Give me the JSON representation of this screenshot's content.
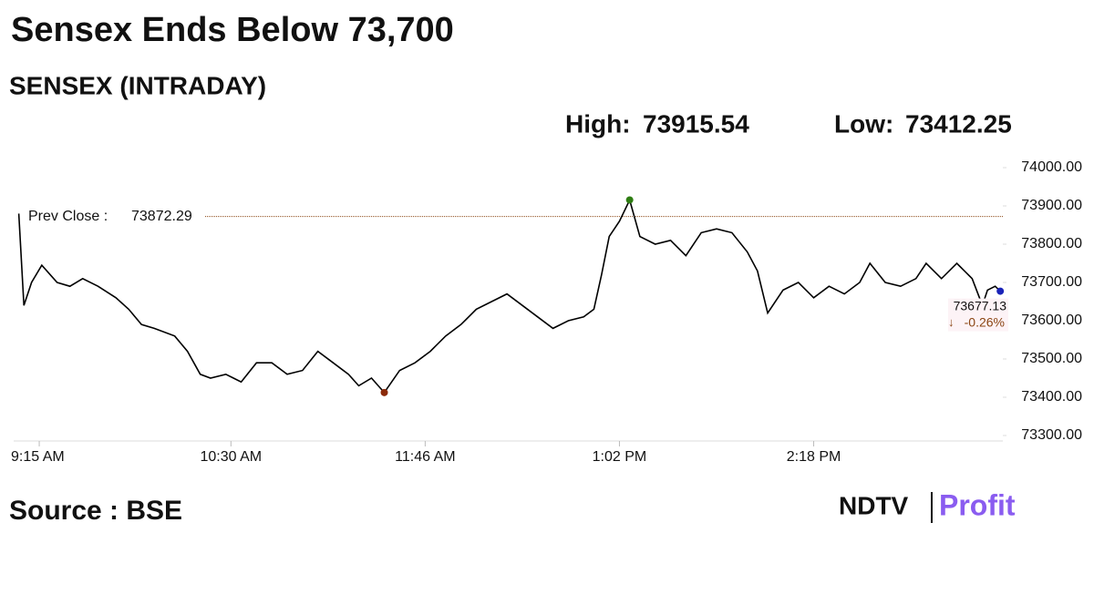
{
  "title": "Sensex Ends Below 73,700",
  "subtitle": "SENSEX (INTRADAY)",
  "high": {
    "label": "High:",
    "value": 73915.54
  },
  "low": {
    "label": "Low:",
    "value": 73412.25
  },
  "source": "Source : BSE",
  "logo": {
    "left": "NDTV",
    "right": "Profit"
  },
  "chart_data": {
    "type": "line",
    "x": [
      547,
      549,
      552,
      556,
      562,
      567,
      572,
      578,
      585,
      590,
      595,
      600,
      608,
      613,
      618,
      622,
      628,
      634,
      640,
      646,
      652,
      658,
      664,
      670,
      676,
      680,
      685,
      690,
      696,
      702,
      708,
      714,
      720,
      726,
      732,
      738,
      744,
      750,
      756,
      762,
      768,
      772,
      775,
      778,
      782,
      786,
      790,
      796,
      802,
      808,
      814,
      820,
      826,
      832,
      836,
      840,
      846,
      852,
      858,
      864,
      870,
      876,
      880,
      886,
      892,
      898,
      902,
      908,
      914,
      920,
      924,
      926,
      929,
      931
    ],
    "series": [
      {
        "name": "SENSEX",
        "color": "#000000",
        "values": [
          73880,
          73640,
          73700,
          73745,
          73700,
          73690,
          73710,
          73690,
          73660,
          73630,
          73590,
          73580,
          73560,
          73520,
          73460,
          73450,
          73460,
          73440,
          73490,
          73490,
          73460,
          73470,
          73520,
          73490,
          73460,
          73430,
          73450,
          73412.25,
          73470,
          73490,
          73520,
          73560,
          73590,
          73630,
          73650,
          73670,
          73640,
          73610,
          73580,
          73600,
          73610,
          73630,
          73720,
          73820,
          73860,
          73915.54,
          73820,
          73800,
          73810,
          73770,
          73830,
          73840,
          73830,
          73780,
          73730,
          73620,
          73680,
          73700,
          73660,
          73690,
          73670,
          73700,
          73750,
          73700,
          73690,
          73710,
          73750,
          73710,
          73750,
          73710,
          73640,
          73680,
          73690,
          73677.13
        ]
      }
    ],
    "prev_close": {
      "label": "Prev Close :",
      "value": 73872.29
    },
    "last": {
      "value": 73677.13,
      "change": "-0.26%"
    },
    "xlim": [
      545,
      932
    ],
    "xticks": [
      {
        "value": 555,
        "label": "9:15 AM"
      },
      {
        "value": 630,
        "label": "10:30 AM"
      },
      {
        "value": 706,
        "label": "11:46 AM"
      },
      {
        "value": 782,
        "label": "1:02 PM"
      },
      {
        "value": 858,
        "label": "2:18 PM"
      }
    ],
    "ylim": [
      73300,
      74000
    ],
    "yticks": [
      {
        "value": 73300,
        "label": "73300.00"
      },
      {
        "value": 73400,
        "label": "73400.00"
      },
      {
        "value": 73500,
        "label": "73500.00"
      },
      {
        "value": 73600,
        "label": "73600.00"
      },
      {
        "value": 73700,
        "label": "73700.00"
      },
      {
        "value": 73800,
        "label": "73800.00"
      },
      {
        "value": 73900,
        "label": "73900.00"
      },
      {
        "value": 74000,
        "label": "74000.00"
      }
    ]
  }
}
